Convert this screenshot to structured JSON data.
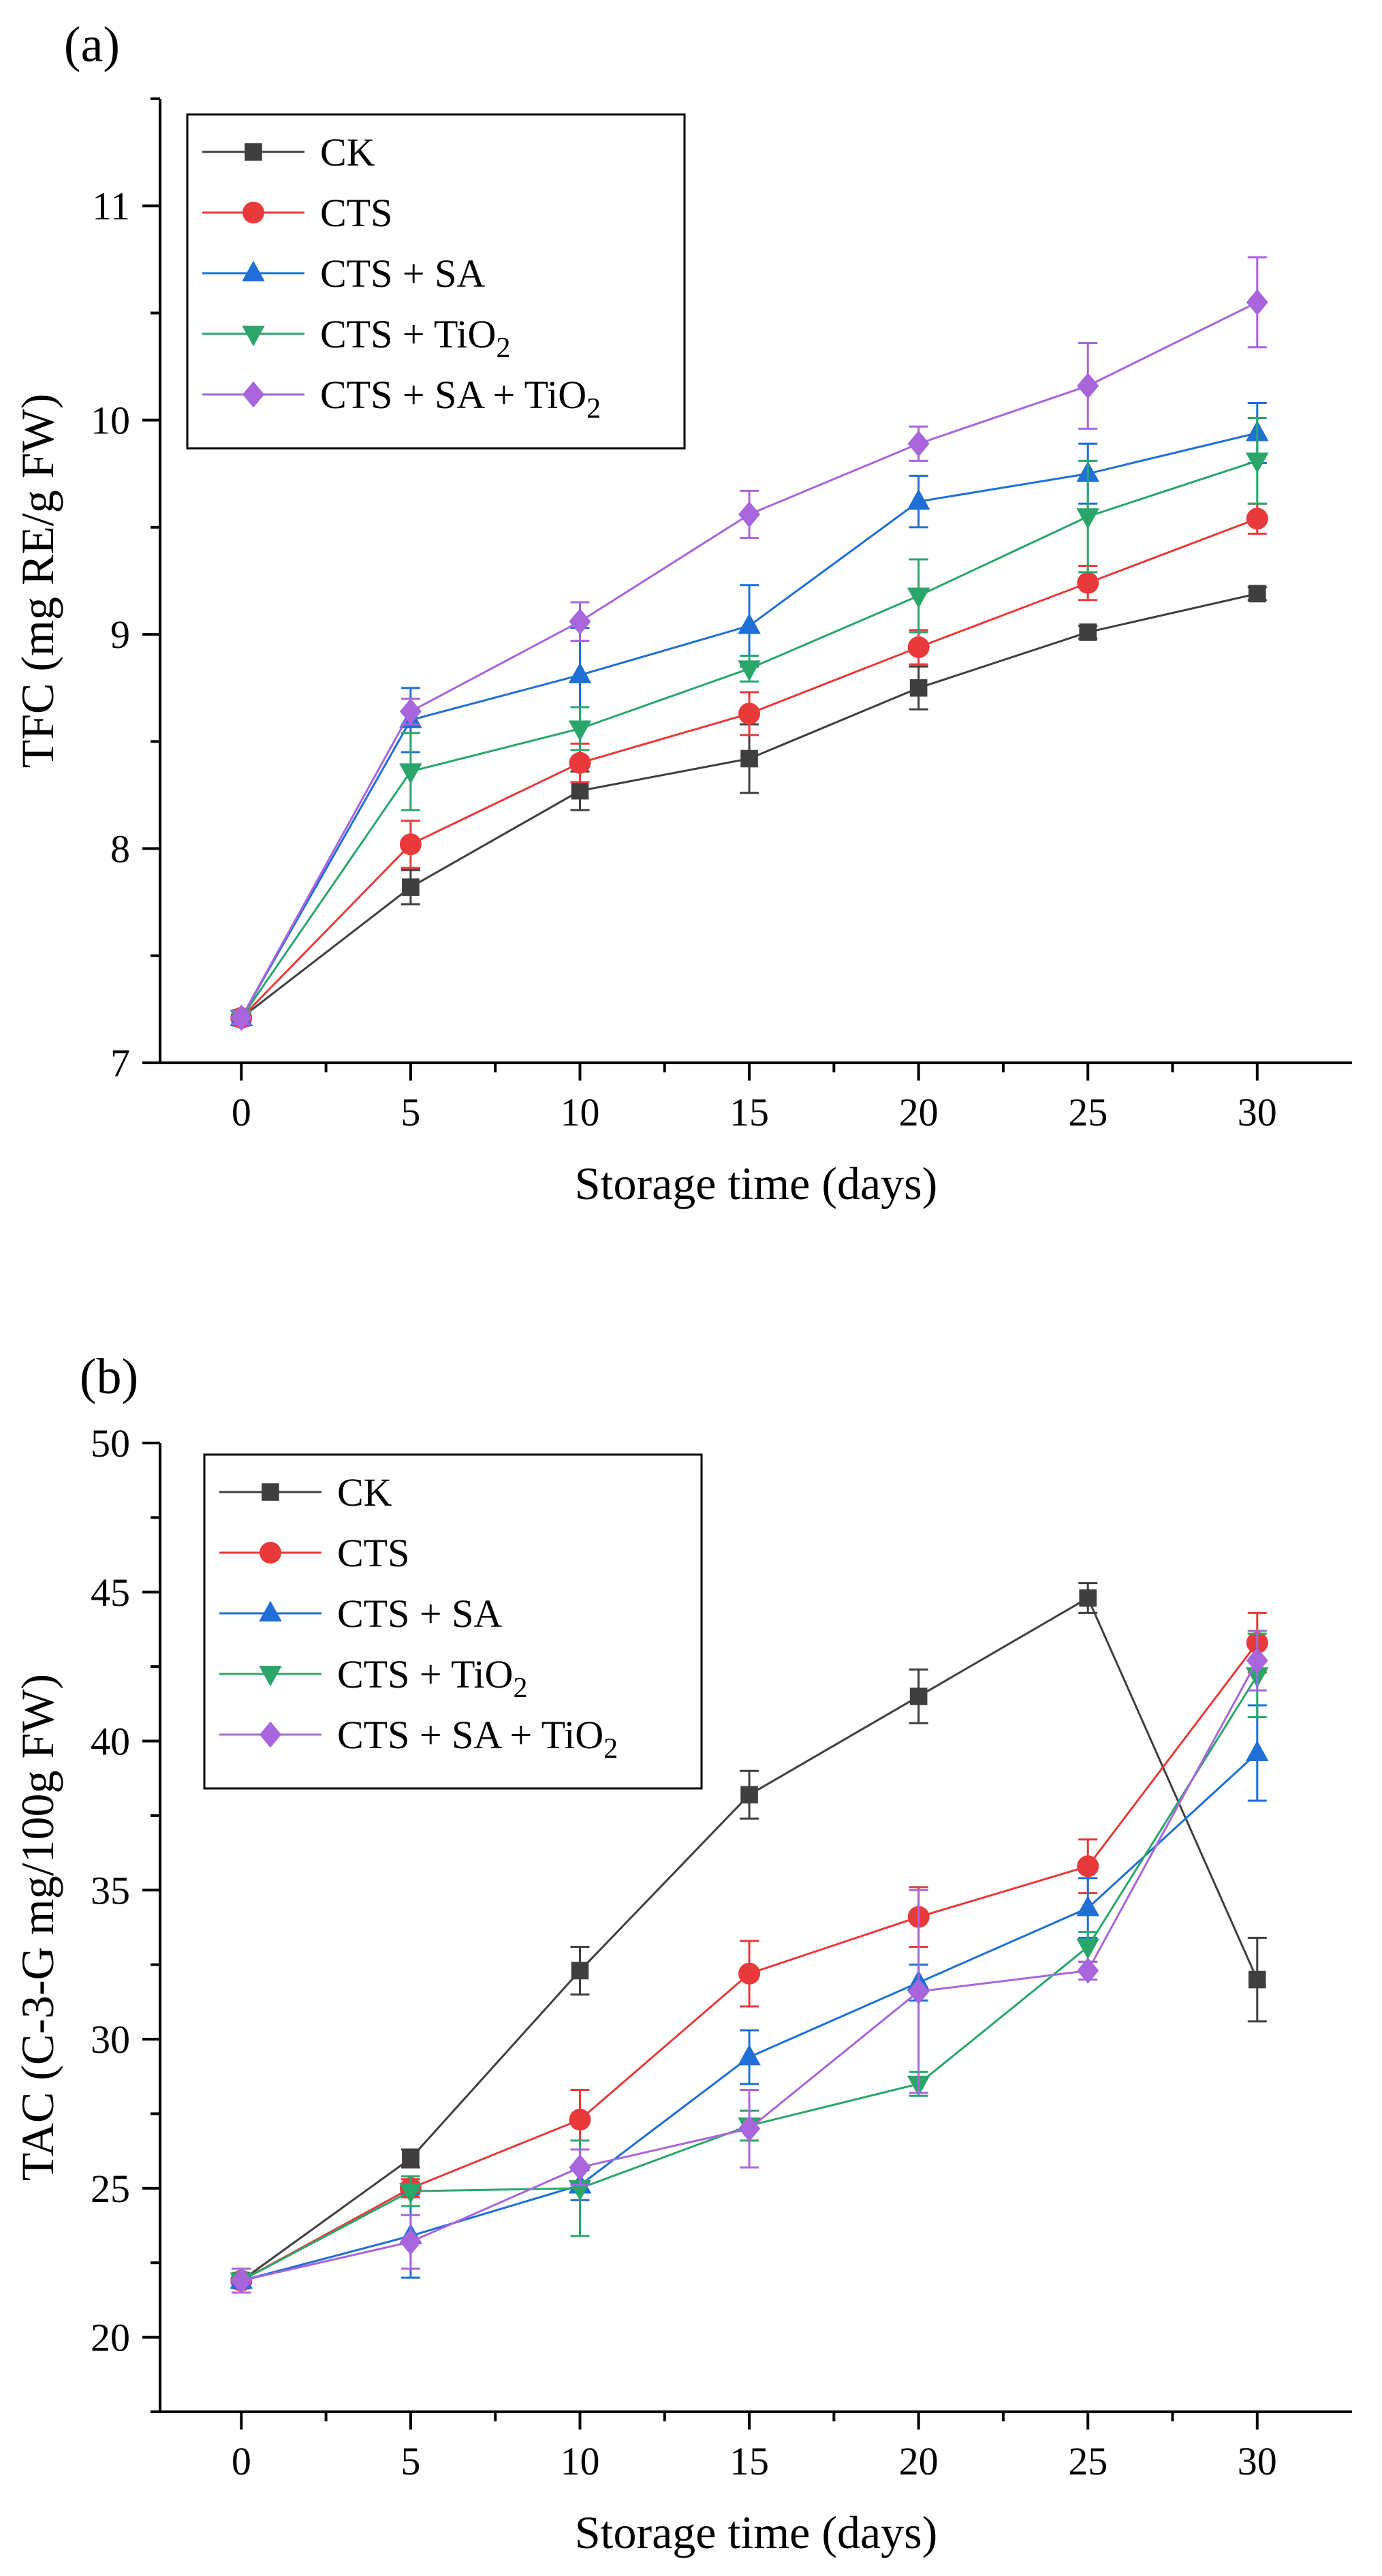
{
  "chart_data": [
    {
      "type": "line",
      "panel_label": "(a)",
      "xlabel": "Storage time (days)",
      "ylabel": "TFC (mg RE/g FW)",
      "x": [
        0,
        5,
        10,
        15,
        20,
        25,
        30
      ],
      "xticks": [
        "0",
        "5",
        "10",
        "15",
        "20",
        "25",
        "30"
      ],
      "xlim": [
        -2.4,
        32.8
      ],
      "ylim": [
        7,
        11.5
      ],
      "yticks": [
        "7",
        "8",
        "9",
        "10",
        "11"
      ],
      "legend_position": "top-left",
      "series": [
        {
          "name": "CK",
          "sub": "",
          "tail": "",
          "color": "#3f3f3f",
          "marker": "square",
          "values": [
            7.21,
            7.82,
            8.27,
            8.42,
            8.75,
            9.01,
            9.19
          ],
          "errors": [
            0.03,
            0.08,
            0.09,
            0.16,
            0.1,
            0.03,
            0.03
          ]
        },
        {
          "name": "CTS",
          "sub": "",
          "tail": "",
          "color": "#e83a3a",
          "marker": "circle",
          "values": [
            7.21,
            8.02,
            8.4,
            8.63,
            8.94,
            9.24,
            9.54
          ],
          "errors": [
            0.03,
            0.11,
            0.09,
            0.1,
            0.08,
            0.08,
            0.07
          ]
        },
        {
          "name": "CTS + SA",
          "sub": "",
          "tail": "",
          "color": "#1f6fd6",
          "marker": "triangle-up",
          "values": [
            7.21,
            8.6,
            8.81,
            9.04,
            9.62,
            9.75,
            9.94
          ],
          "errors": [
            0.03,
            0.15,
            0.22,
            0.19,
            0.12,
            0.14,
            0.14
          ]
        },
        {
          "name": "CTS + TiO",
          "sub": "2",
          "tail": "",
          "color": "#2aa66a",
          "marker": "triangle-down",
          "values": [
            7.21,
            8.36,
            8.56,
            8.84,
            9.18,
            9.55,
            9.81
          ],
          "errors": [
            0.03,
            0.18,
            0.1,
            0.06,
            0.17,
            0.26,
            0.2
          ]
        },
        {
          "name": "CTS + SA + TiO",
          "sub": "2",
          "tail": "",
          "color": "#a865dc",
          "marker": "diamond",
          "values": [
            7.21,
            8.64,
            9.06,
            9.56,
            9.89,
            10.16,
            10.55
          ],
          "errors": [
            0.03,
            0.06,
            0.09,
            0.11,
            0.08,
            0.2,
            0.21
          ]
        }
      ]
    },
    {
      "type": "line",
      "panel_label": "(b)",
      "xlabel": "Storage time (days)",
      "ylabel": "TAC (C-3-G mg/100g FW)",
      "x": [
        0,
        5,
        10,
        15,
        20,
        25,
        30
      ],
      "xticks": [
        "0",
        "5",
        "10",
        "15",
        "20",
        "25",
        "30"
      ],
      "xlim": [
        -2.4,
        32.8
      ],
      "ylim": [
        17.5,
        50
      ],
      "yticks": [
        "20",
        "25",
        "30",
        "35",
        "40",
        "45",
        "50"
      ],
      "legend_position": "top-left",
      "series": [
        {
          "name": "CK",
          "sub": "",
          "tail": "",
          "color": "#3f3f3f",
          "marker": "square",
          "values": [
            21.9,
            26.0,
            32.3,
            38.2,
            41.5,
            44.8,
            32.0
          ],
          "errors": [
            0.4,
            0.3,
            0.8,
            0.8,
            0.9,
            0.5,
            1.4
          ]
        },
        {
          "name": "CTS",
          "sub": "",
          "tail": "",
          "color": "#e83a3a",
          "marker": "circle",
          "values": [
            21.9,
            25.0,
            27.3,
            32.2,
            34.1,
            35.8,
            43.3
          ],
          "errors": [
            0.4,
            0.3,
            1.0,
            1.1,
            1.0,
            0.9,
            1.0
          ]
        },
        {
          "name": "CTS + SA",
          "sub": "",
          "tail": "",
          "color": "#1f6fd6",
          "marker": "triangle-up",
          "values": [
            21.9,
            23.4,
            25.1,
            29.4,
            31.9,
            34.4,
            39.6
          ],
          "errors": [
            0.4,
            1.4,
            0.5,
            0.9,
            0.6,
            1.0,
            1.6
          ]
        },
        {
          "name": "CTS + TiO",
          "sub": "2",
          "tail": "",
          "color": "#2aa66a",
          "marker": "triangle-down",
          "values": [
            21.9,
            24.9,
            25.0,
            27.1,
            28.5,
            33.1,
            42.2
          ],
          "errors": [
            0.4,
            0.5,
            1.6,
            0.5,
            0.4,
            0.5,
            1.4
          ]
        },
        {
          "name": "CTS + SA + TiO",
          "sub": "2",
          "tail": "",
          "color": "#a865dc",
          "marker": "diamond",
          "values": [
            21.9,
            23.2,
            25.7,
            27.0,
            31.6,
            32.3,
            42.7
          ],
          "errors": [
            0.4,
            0.9,
            0.6,
            1.3,
            3.4,
            0.3,
            1.0
          ]
        }
      ]
    }
  ]
}
